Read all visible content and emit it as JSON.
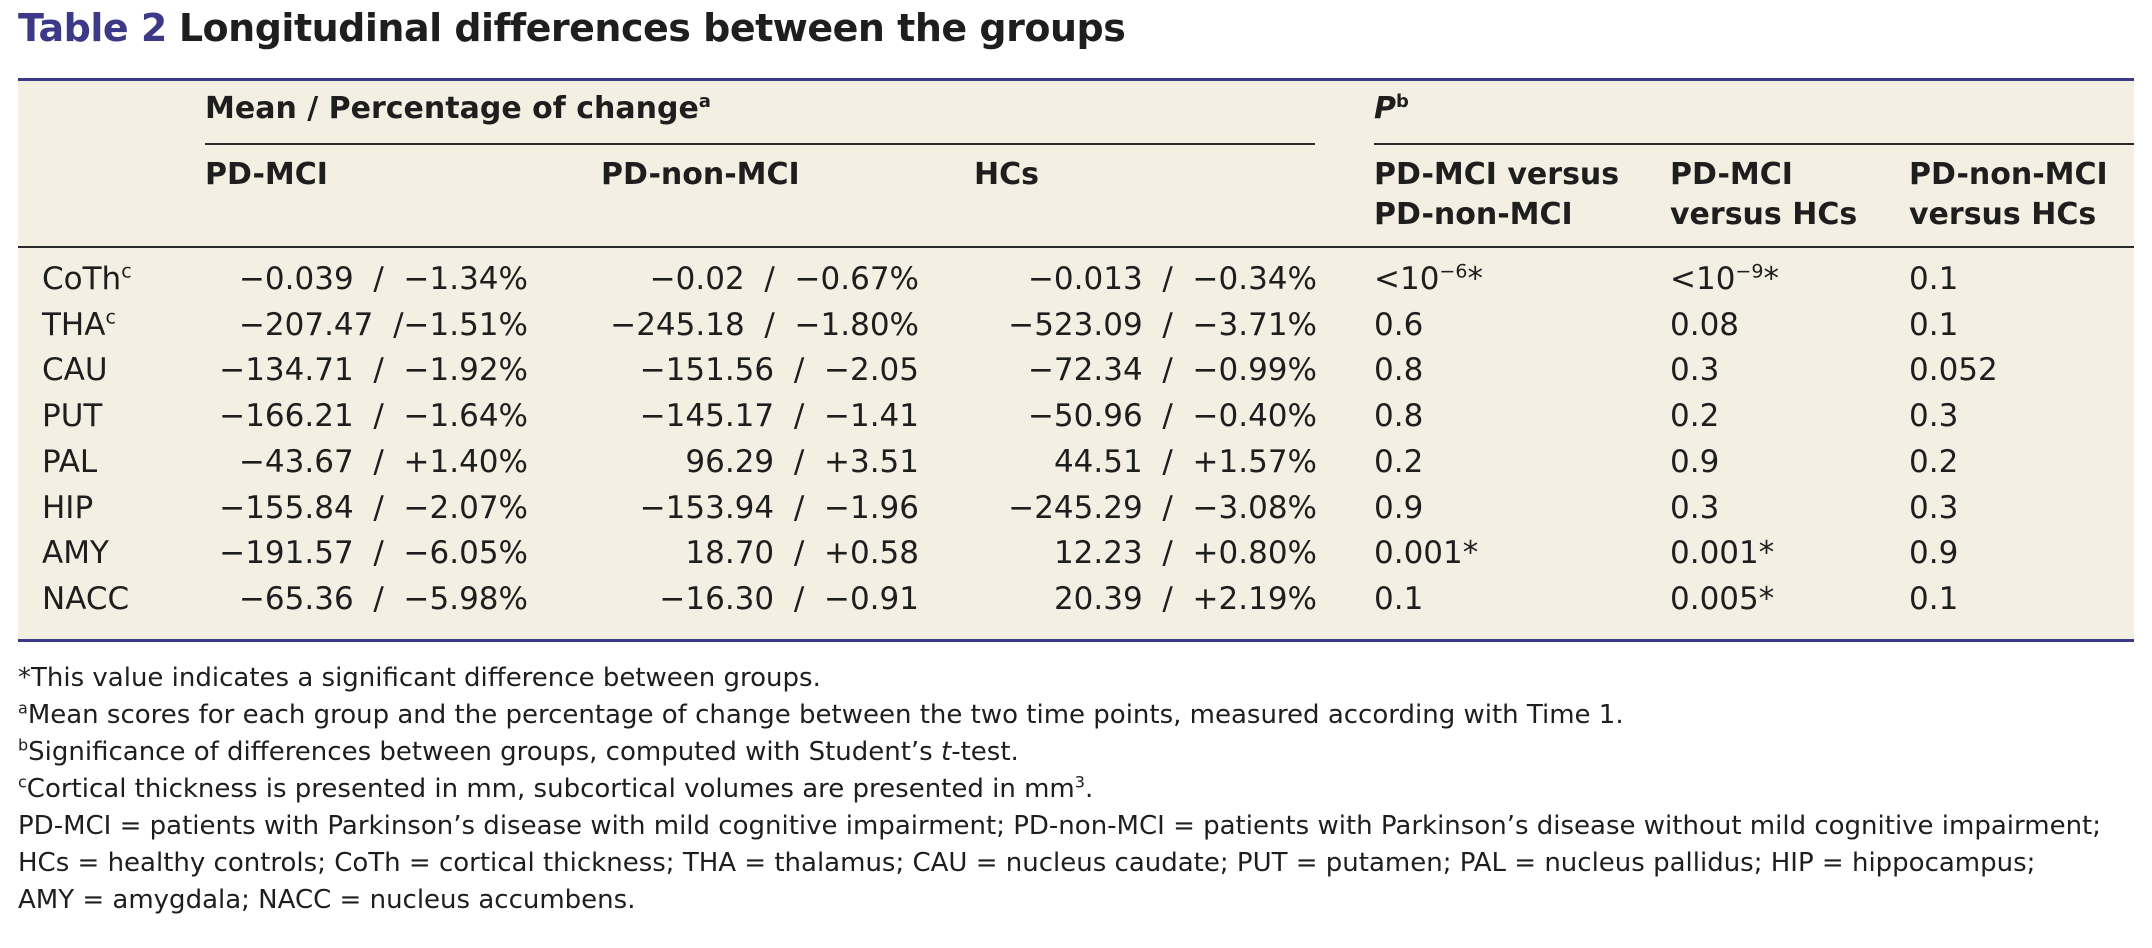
{
  "title": {
    "label": "Table 2",
    "text": "Longitudinal differences between the groups"
  },
  "header": {
    "group_mean": "Mean / Percentage of change",
    "group_mean_note": "a",
    "group_p": "P",
    "group_p_note": "b",
    "cols": [
      "PD-MCI",
      "PD-non-MCI",
      "HCs"
    ],
    "p_cols": [
      [
        "PD-MCI versus",
        "PD-non-MCI"
      ],
      [
        "PD-MCI",
        "versus HCs"
      ],
      [
        "PD-non-MCI",
        "versus HCs"
      ]
    ]
  },
  "rows": [
    {
      "label": "CoTh",
      "note": "c",
      "pdmci": "−0.039  /  −1.34%",
      "pdnon": "−0.02  /  −0.67%",
      "hcs": "−0.013  /  −0.34%",
      "p1": "<10",
      "p1_exp": "−6",
      "p1_star": "*",
      "p2": "<10",
      "p2_exp": "−9",
      "p2_star": "*",
      "p3": "0.1"
    },
    {
      "label": "THA",
      "note": "c",
      "pdmci": "−207.47  /−1.51%",
      "pdnon": "−245.18  /  −1.80%",
      "hcs": "−523.09  /  −3.71%",
      "p1": "0.6",
      "p2": "0.08",
      "p3": "0.1"
    },
    {
      "label": "CAU",
      "note": "",
      "pdmci": "−134.71  /  −1.92%",
      "pdnon": "−151.56  /  −2.05",
      "hcs": "−72.34  /  −0.99%",
      "p1": "0.8",
      "p2": "0.3",
      "p3": "0.052"
    },
    {
      "label": "PUT",
      "note": "",
      "pdmci": "−166.21  /  −1.64%",
      "pdnon": "−145.17  /  −1.41",
      "hcs": "−50.96  /  −0.40%",
      "p1": "0.8",
      "p2": "0.2",
      "p3": "0.3"
    },
    {
      "label": "PAL",
      "note": "",
      "pdmci": "−43.67  /  +1.40%",
      "pdnon": "96.29  /  +3.51",
      "hcs": "44.51  /  +1.57%",
      "p1": "0.2",
      "p2": "0.9",
      "p3": "0.2"
    },
    {
      "label": "HIP",
      "note": "",
      "pdmci": "−155.84  /  −2.07%",
      "pdnon": "−153.94  /  −1.96",
      "hcs": "−245.29  /  −3.08%",
      "p1": "0.9",
      "p2": "0.3",
      "p3": "0.3"
    },
    {
      "label": "AMY",
      "note": "",
      "pdmci": "−191.57  /  −6.05%",
      "pdnon": "18.70  /  +0.58",
      "hcs": "12.23  /  +0.80%",
      "p1": "0.001*",
      "p2": "0.001*",
      "p3": "0.9"
    },
    {
      "label": "NACC",
      "note": "",
      "pdmci": "−65.36  /  −5.98%",
      "pdnon": "−16.30  /  −0.91",
      "hcs": "20.39  /  +2.19%",
      "p1": "0.1",
      "p2": "0.005*",
      "p3": "0.1"
    }
  ],
  "footnotes": {
    "star": "*This value indicates a significant difference between groups.",
    "a_mark": "a",
    "a": "Mean scores for each group and the percentage of change between the two time points, measured according with Time 1.",
    "b_mark": "b",
    "b_pre": "Significance of differences between groups, computed with Student’s ",
    "b_t": "t",
    "b_post": "-test.",
    "c_mark": "c",
    "c": "Cortical thickness is presented in mm, subcortical volumes are presented in mm",
    "c_sup": "3",
    "c_end": ".",
    "abbr1": "PD-MCI = patients with Parkinson’s disease with mild cognitive impairment; PD-non-MCI = patients with Parkinson’s disease without mild cognitive impairment;",
    "abbr2": "HCs = healthy controls; CoTh = cortical thickness; THA = thalamus; CAU = nucleus caudate; PUT = putamen; PAL = nucleus pallidus; HIP = hippocampus;",
    "abbr3": "AMY = amygdala; NACC = nucleus accumbens."
  }
}
